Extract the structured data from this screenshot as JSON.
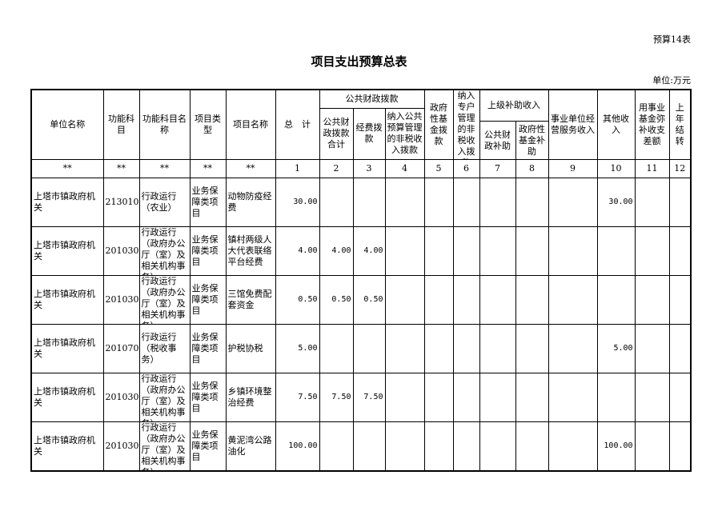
{
  "form_no": "预算14表",
  "title": "项目支出预算总表",
  "unit": "单位:万元",
  "headers": {
    "unit_name": "单位名称",
    "func_code": "功能科目",
    "func_name": "功能科目名称",
    "proj_type": "项目类型",
    "proj_name": "项目名称",
    "total": "总　计",
    "public_fiscal": "公共财政拨款",
    "public_fiscal_total": "公共财政拨款合计",
    "funds": "经费拨款",
    "nontax_budget": "纳入公共预算管理的非税收入拨款",
    "gov_fund": "政府性基金拨款",
    "nontax_special": "纳入专户管理的非税收入拨款",
    "superior": "上级补助收入",
    "superior_public": "公共财政补助",
    "superior_gov": "政府性基金补助",
    "business": "事业单位经营服务收入",
    "other": "其他收入",
    "fund_offset": "用事业基金弥补收支差额",
    "carryover": "上年结转"
  },
  "index_row": [
    "**",
    "**",
    "**",
    "**",
    "**",
    "1",
    "2",
    "3",
    "4",
    "5",
    "6",
    "7",
    "8",
    "9",
    "10",
    "11",
    "12"
  ],
  "rows": [
    [
      "上塔市镇政府机关",
      "2130101",
      "行政运行（农业）",
      "业务保障类项目",
      "动物防疫经费",
      "30.00",
      "",
      "",
      "",
      "",
      "",
      "",
      "",
      "",
      "30.00",
      "",
      ""
    ],
    [
      "上塔市镇政府机关",
      "2010301",
      "行政运行（政府办公厅（室）及相关机构事务）",
      "业务保障类项目",
      "镇村两级人大代表联络平台经费",
      "4.00",
      "4.00",
      "4.00",
      "",
      "",
      "",
      "",
      "",
      "",
      "",
      "",
      ""
    ],
    [
      "上塔市镇政府机关",
      "2010301",
      "行政运行（政府办公厅（室）及相关机构事务）",
      "业务保障类项目",
      "三馆免费配套资金",
      "0.50",
      "0.50",
      "0.50",
      "",
      "",
      "",
      "",
      "",
      "",
      "",
      "",
      ""
    ],
    [
      "上塔市镇政府机关",
      "2010701",
      "行政运行（税收事务）",
      "业务保障类项目",
      "护税协税",
      "5.00",
      "",
      "",
      "",
      "",
      "",
      "",
      "",
      "",
      "5.00",
      "",
      ""
    ],
    [
      "上塔市镇政府机关",
      "2010301",
      "行政运行（政府办公厅（室）及相关机构事务）",
      "业务保障类项目",
      "乡镇环境整治经费",
      "7.50",
      "7.50",
      "7.50",
      "",
      "",
      "",
      "",
      "",
      "",
      "",
      "",
      ""
    ],
    [
      "上塔市镇政府机关",
      "2010301",
      "行政运行（政府办公厅（室）及相关机构事务）",
      "业务保障类项目",
      "黄泥湾公路油化",
      "100.00",
      "",
      "",
      "",
      "",
      "",
      "",
      "",
      "",
      "100.00",
      "",
      ""
    ]
  ]
}
